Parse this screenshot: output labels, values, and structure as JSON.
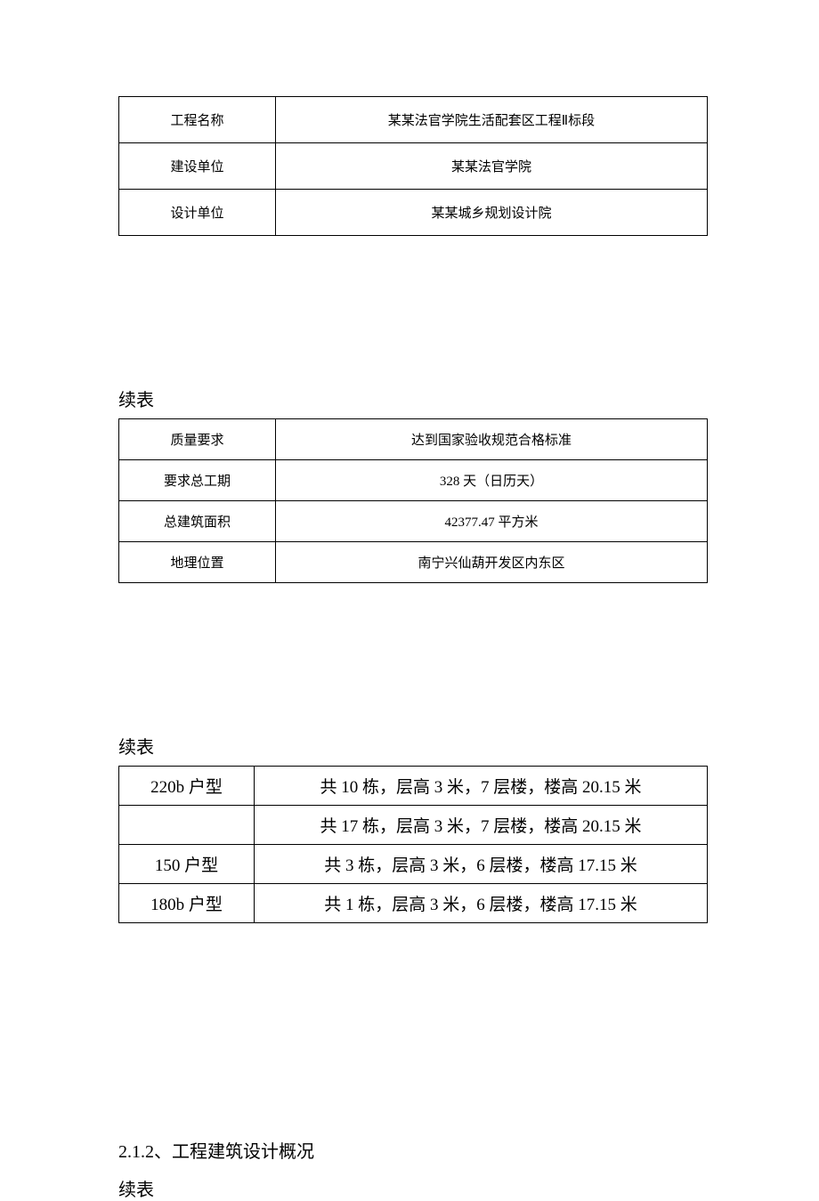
{
  "text_color": "#000000",
  "background_color": "#ffffff",
  "border_color": "#000000",
  "table1": {
    "font_size": 15,
    "rows": [
      {
        "label": "工程名称",
        "value": "某某法官学院生活配套区工程Ⅱ标段"
      },
      {
        "label": "建设单位",
        "value": "某某法官学院"
      },
      {
        "label": "设计单位",
        "value": "某某城乡规划设计院"
      }
    ]
  },
  "continue_label_1": "续表",
  "table2": {
    "font_size": 15,
    "rows": [
      {
        "label": "质量要求",
        "value": "达到国家验收规范合格标准"
      },
      {
        "label": "要求总工期",
        "value": "328 天（日历天）"
      },
      {
        "label": "总建筑面积",
        "value": "42377.47 平方米"
      },
      {
        "label": "地理位置",
        "value": "南宁兴仙葫开发区内东区"
      }
    ]
  },
  "continue_label_2": "续表",
  "table3": {
    "font_size": 19,
    "rows": [
      {
        "label": "220b 户型",
        "value": "共 10 栋，层高 3 米，7 层楼，楼高 20.15 米"
      },
      {
        "label": "",
        "value": "共 17 栋，层高 3 米，7 层楼，楼高 20.15 米"
      },
      {
        "label": "150 户型",
        "value": "共 3 栋，层高 3 米，6 层楼，楼高 17.15 米"
      },
      {
        "label": "180b 户型",
        "value": "共 1 栋，层高 3 米，6 层楼，楼高 17.15 米"
      }
    ]
  },
  "section_heading": "2.1.2、工程建筑设计概况",
  "continue_label_3": "续表"
}
